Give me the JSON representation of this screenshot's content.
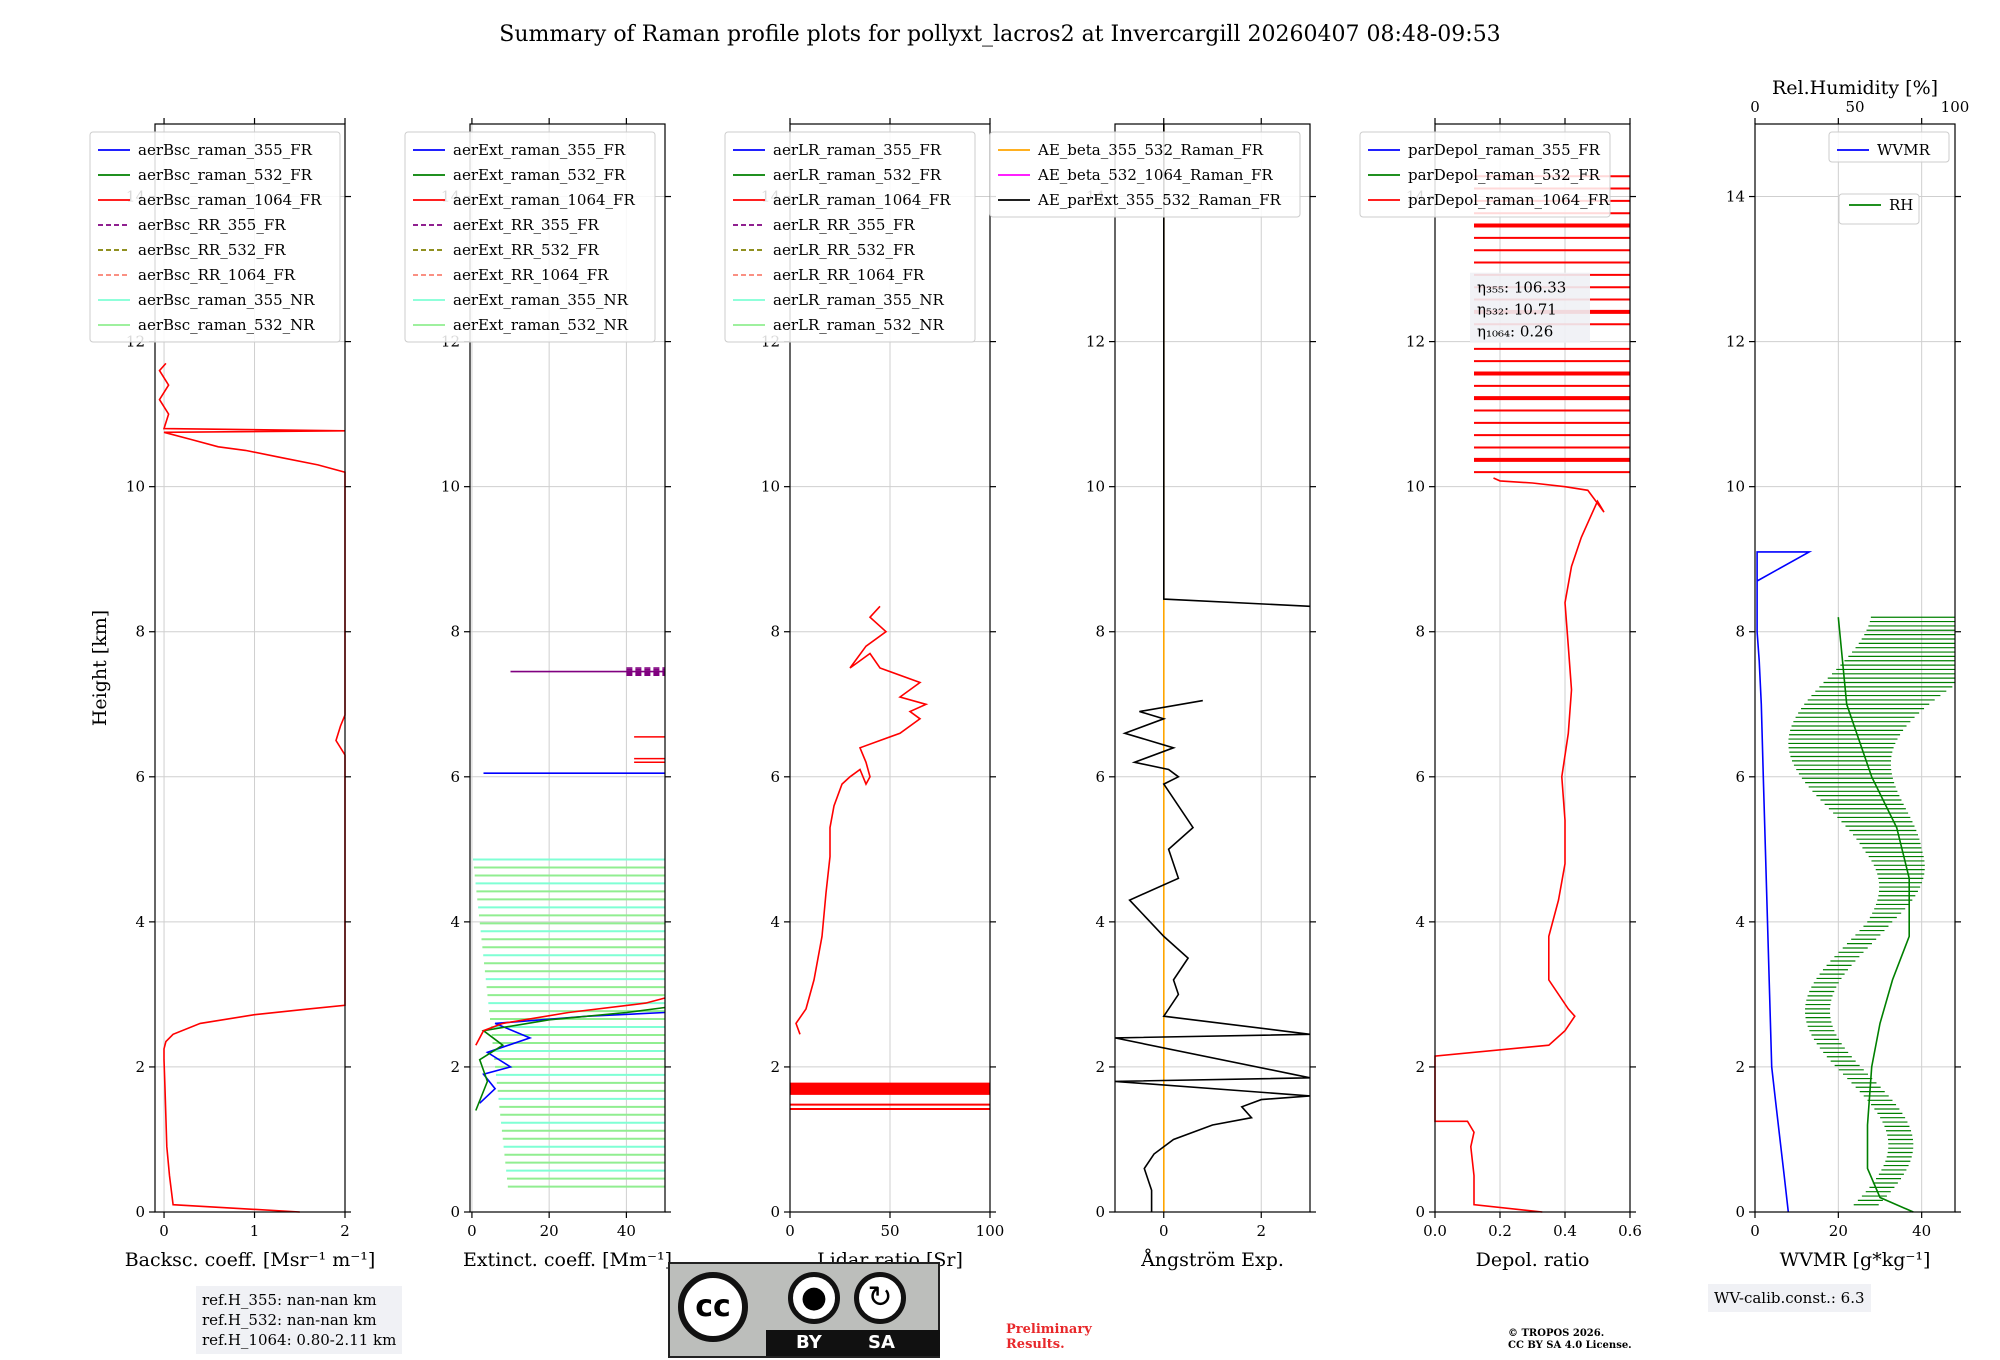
{
  "title": "Summary of Raman profile plots for pollyxt_lacros2 at Invercargill 20260407 08:48-09:53",
  "ylabel": "Height [km]",
  "chart_data": [
    {
      "type": "line",
      "id": "bsc",
      "xlabel": "Backsc. coeff. [Msr⁻¹ m⁻¹]",
      "xlim": [
        -0.1,
        2.0
      ],
      "ylim": [
        0,
        15
      ],
      "xticks": [
        0,
        1,
        2
      ],
      "xtick_labels": [
        "0",
        "1",
        "2"
      ],
      "yticks": [
        0,
        2,
        4,
        6,
        8,
        10,
        12,
        14
      ],
      "grid": true,
      "legend": [
        {
          "label": "aerBsc_raman_355_FR",
          "color": "#0000ff",
          "dash": false
        },
        {
          "label": "aerBsc_raman_532_FR",
          "color": "#008000",
          "dash": false
        },
        {
          "label": "aerBsc_raman_1064_FR",
          "color": "#ff0000",
          "dash": false
        },
        {
          "label": "aerBsc_RR_355_FR",
          "color": "#800080",
          "dash": true
        },
        {
          "label": "aerBsc_RR_532_FR",
          "color": "#808000",
          "dash": true
        },
        {
          "label": "aerBsc_RR_1064_FR",
          "color": "#fa8072",
          "dash": true
        },
        {
          "label": "aerBsc_raman_355_NR",
          "color": "#7fffd4",
          "dash": false
        },
        {
          "label": "aerBsc_raman_532_NR",
          "color": "#90ee90",
          "dash": false
        }
      ],
      "series": [
        {
          "name": "aerBsc_raman_1064_FR",
          "color": "#ff0000",
          "x": [
            1.5,
            0.1,
            0.06,
            0.03,
            0.02,
            0.01,
            0.0,
            0.0,
            0.02,
            0.1,
            0.4,
            1.0,
            1.6,
            2.0,
            2.0,
            1.9,
            1.95,
            2.0,
            2.0,
            1.7,
            1.3,
            0.9,
            0.6,
            0.3,
            0.0,
            2.0,
            0.0,
            0.05,
            -0.05,
            0.05,
            -0.05,
            0.02
          ],
          "y": [
            0.0,
            0.1,
            0.5,
            0.9,
            1.3,
            1.7,
            2.1,
            2.25,
            2.35,
            2.45,
            2.6,
            2.72,
            2.8,
            2.85,
            6.3,
            6.5,
            6.7,
            6.85,
            10.2,
            10.3,
            10.4,
            10.5,
            10.55,
            10.65,
            10.75,
            10.77,
            10.8,
            11.0,
            11.2,
            11.4,
            11.6,
            11.7
          ]
        }
      ]
    },
    {
      "type": "line",
      "id": "ext",
      "xlabel": "Extinct. coeff. [Mm⁻¹]",
      "xlim": [
        -0.5,
        50
      ],
      "ylim": [
        0,
        15
      ],
      "xticks": [
        0,
        20,
        40
      ],
      "xtick_labels": [
        "0",
        "20",
        "40"
      ],
      "yticks": [
        0,
        2,
        4,
        6,
        8,
        10,
        12,
        14
      ],
      "grid": true,
      "legend": [
        {
          "label": "aerExt_raman_355_FR",
          "color": "#0000ff",
          "dash": false
        },
        {
          "label": "aerExt_raman_532_FR",
          "color": "#008000",
          "dash": false
        },
        {
          "label": "aerExt_raman_1064_FR",
          "color": "#ff0000",
          "dash": false
        },
        {
          "label": "aerExt_RR_355_FR",
          "color": "#800080",
          "dash": true
        },
        {
          "label": "aerExt_RR_532_FR",
          "color": "#808000",
          "dash": true
        },
        {
          "label": "aerExt_RR_1064_FR",
          "color": "#fa8072",
          "dash": true
        },
        {
          "label": "aerExt_raman_355_NR",
          "color": "#7fffd4",
          "dash": false
        },
        {
          "label": "aerExt_raman_532_NR",
          "color": "#90ee90",
          "dash": false
        }
      ],
      "series": [
        {
          "name": "aerExt_raman_355_FR",
          "color": "#0000ff",
          "x": [
            2,
            6,
            3,
            10,
            4,
            15,
            6,
            30,
            50
          ],
          "y": [
            1.5,
            1.7,
            1.9,
            2.0,
            2.2,
            2.4,
            2.6,
            2.7,
            2.75
          ]
        },
        {
          "name": "aerExt_raman_532_FR",
          "color": "#008000",
          "x": [
            1,
            4,
            2,
            8,
            3,
            20,
            40,
            50
          ],
          "y": [
            1.4,
            1.8,
            2.1,
            2.3,
            2.5,
            2.65,
            2.75,
            2.82
          ]
        },
        {
          "name": "aerExt_raman_1064_FR",
          "color": "#ff0000",
          "x": [
            1,
            3,
            8,
            25,
            45,
            50
          ],
          "y": [
            2.3,
            2.5,
            2.6,
            2.75,
            2.88,
            2.95
          ]
        },
        {
          "name": "aerExt_RR_355_FR",
          "color": "#800080",
          "x": [
            10,
            50
          ],
          "y": [
            7.45,
            7.45
          ]
        },
        {
          "name": "aerExt_raman_355_FR_upper",
          "color": "#0000ff",
          "x": [
            3,
            50
          ],
          "y": [
            6.05,
            6.05
          ]
        }
      ]
    },
    {
      "type": "line",
      "id": "lr",
      "xlabel": "Lidar ratio [Sr]",
      "xlim": [
        0,
        100
      ],
      "ylim": [
        0,
        15
      ],
      "xticks": [
        0,
        50,
        100
      ],
      "xtick_labels": [
        "0",
        "50",
        "100"
      ],
      "yticks": [
        0,
        2,
        4,
        6,
        8,
        10,
        12,
        14
      ],
      "grid": true,
      "legend": [
        {
          "label": "aerLR_raman_355_FR",
          "color": "#0000ff",
          "dash": false
        },
        {
          "label": "aerLR_raman_532_FR",
          "color": "#008000",
          "dash": false
        },
        {
          "label": "aerLR_raman_1064_FR",
          "color": "#ff0000",
          "dash": false
        },
        {
          "label": "aerLR_RR_355_FR",
          "color": "#800080",
          "dash": true
        },
        {
          "label": "aerLR_RR_532_FR",
          "color": "#808000",
          "dash": true
        },
        {
          "label": "aerLR_RR_1064_FR",
          "color": "#fa8072",
          "dash": true
        },
        {
          "label": "aerLR_raman_355_NR",
          "color": "#7fffd4",
          "dash": false
        },
        {
          "label": "aerLR_raman_532_NR",
          "color": "#90ee90",
          "dash": false
        }
      ],
      "series": [
        {
          "name": "aerLR_raman_1064_FR",
          "color": "#ff0000",
          "x": [
            5,
            3,
            8,
            12,
            16,
            18,
            20,
            20,
            22,
            26,
            30,
            35,
            38,
            40,
            38,
            35,
            45,
            55,
            65,
            60,
            68,
            55,
            65,
            45,
            40,
            30,
            38,
            48,
            40,
            45
          ],
          "y": [
            2.45,
            2.6,
            2.8,
            3.2,
            3.8,
            4.4,
            4.9,
            5.3,
            5.6,
            5.9,
            6.0,
            6.1,
            5.9,
            6.0,
            6.2,
            6.4,
            6.5,
            6.6,
            6.8,
            6.9,
            7.0,
            7.1,
            7.3,
            7.5,
            7.7,
            7.5,
            7.8,
            8.0,
            8.2,
            8.35
          ]
        }
      ]
    },
    {
      "type": "line",
      "id": "ae",
      "xlabel": "Ångström Exp.",
      "xlim": [
        -1,
        3
      ],
      "ylim": [
        0,
        15
      ],
      "xticks": [
        0,
        2
      ],
      "xtick_labels": [
        "0",
        "2"
      ],
      "yticks": [
        0,
        2,
        4,
        6,
        8,
        10,
        12,
        14
      ],
      "grid": true,
      "legend": [
        {
          "label": "AE_beta_355_532_Raman_FR",
          "color": "#ffa500",
          "dash": false
        },
        {
          "label": "AE_beta_532_1064_Raman_FR",
          "color": "#ff00ff",
          "dash": false
        },
        {
          "label": "AE_parExt_355_532_Raman_FR",
          "color": "#000000",
          "dash": false
        }
      ],
      "series": [
        {
          "name": "AE_beta_355_532_Raman_FR",
          "color": "#ffa500",
          "x": [
            0,
            0
          ],
          "y": [
            0,
            15
          ]
        },
        {
          "name": "AE_parExt_355_532_Raman_FR",
          "color": "#000000",
          "x": [
            -0.25,
            -0.25,
            -0.4,
            -0.2,
            0.2,
            1.0,
            1.8,
            1.6,
            2.0,
            3.0,
            -1.0,
            3.0,
            -1.0,
            3.0,
            0.0,
            0.3,
            0.2,
            0.5,
            0.0,
            -0.7,
            0.3,
            0.1,
            0.6,
            0.3,
            0.0,
            0.3,
            0.1,
            -0.6,
            0.2,
            -0.8,
            0.0,
            -0.5,
            0.8
          ],
          "y": [
            0.0,
            0.3,
            0.6,
            0.8,
            1.0,
            1.2,
            1.3,
            1.45,
            1.55,
            1.6,
            1.8,
            1.85,
            2.4,
            2.45,
            2.7,
            3.0,
            3.2,
            3.5,
            3.8,
            4.3,
            4.6,
            5.0,
            5.3,
            5.6,
            5.9,
            6.0,
            6.1,
            6.2,
            6.4,
            6.6,
            6.8,
            6.9,
            7.05
          ]
        },
        {
          "name": "AE_parExt_upper",
          "color": "#000000",
          "x": [
            0,
            0,
            3.0
          ],
          "y": [
            15,
            8.45,
            8.35
          ]
        }
      ]
    },
    {
      "type": "line",
      "id": "depol",
      "xlabel": "Depol. ratio",
      "xlim": [
        0,
        0.6
      ],
      "ylim": [
        0,
        15
      ],
      "xticks": [
        0.0,
        0.2,
        0.4,
        0.6
      ],
      "xtick_labels": [
        "0.0",
        "0.2",
        "0.4",
        "0.6"
      ],
      "yticks": [
        0,
        2,
        4,
        6,
        8,
        10,
        12,
        14
      ],
      "grid": true,
      "legend": [
        {
          "label": "parDepol_raman_355_FR",
          "color": "#0000ff",
          "dash": false
        },
        {
          "label": "parDepol_raman_532_FR",
          "color": "#008000",
          "dash": false
        },
        {
          "label": "parDepol_raman_1064_FR",
          "color": "#ff0000",
          "dash": false
        }
      ],
      "annotation": {
        "eta355": "η₃₅₅: 106.33",
        "eta532": "η₅₃₂: 10.71",
        "eta1064": "η₁₀₆₄: 0.26"
      },
      "series": [
        {
          "name": "parDepol_raman_1064_FR",
          "color": "#ff0000",
          "x": [
            0.33,
            0.12,
            0.12,
            0.11,
            0.12,
            0.1,
            0.0,
            0.0,
            0.35,
            0.4,
            0.43,
            0.41,
            0.35,
            0.35,
            0.38,
            0.4,
            0.4,
            0.39,
            0.41,
            0.42,
            0.41,
            0.4,
            0.42,
            0.45,
            0.48,
            0.5,
            0.52,
            0.47,
            0.4,
            0.3,
            0.2,
            0.18
          ],
          "y": [
            0.0,
            0.1,
            0.5,
            0.9,
            1.1,
            1.25,
            1.25,
            2.15,
            2.3,
            2.5,
            2.7,
            2.8,
            3.2,
            3.8,
            4.3,
            4.8,
            5.4,
            6.0,
            6.6,
            7.2,
            7.8,
            8.4,
            8.9,
            9.3,
            9.6,
            9.8,
            9.65,
            9.95,
            10.0,
            10.05,
            10.08,
            10.12
          ]
        }
      ]
    },
    {
      "type": "line",
      "id": "wv",
      "xlabel": "WVMR [g*kg⁻¹]",
      "xlim": [
        0,
        48
      ],
      "ylim": [
        0,
        15
      ],
      "xticks": [
        0,
        20,
        40
      ],
      "xtick_labels": [
        "0",
        "20",
        "40"
      ],
      "yticks": [
        0,
        2,
        4,
        6,
        8,
        10,
        12,
        14
      ],
      "top_axis": {
        "label": "Rel.Humidity [%]",
        "xlim": [
          0,
          100
        ],
        "xticks": [
          0,
          50,
          100
        ],
        "xtick_labels": [
          "0",
          "50",
          "100"
        ]
      },
      "grid": true,
      "legend": [
        {
          "label": "WVMR",
          "color": "#0000ff",
          "dash": false
        },
        {
          "label": "RH",
          "color": "#008000",
          "dash": false
        }
      ],
      "wv_calib": "WV-calib.const.: 6.3",
      "series": [
        {
          "name": "WVMR",
          "color": "#0000ff",
          "x": [
            8,
            7,
            6,
            5,
            4,
            3.5,
            3,
            2.5,
            2,
            1.5,
            1,
            0.5,
            0.5,
            13,
            0.5
          ],
          "y": [
            0,
            0.5,
            1,
            1.5,
            2,
            3,
            4,
            5,
            6,
            7,
            7.6,
            8.0,
            9.1,
            9.1,
            8.7
          ]
        },
        {
          "name": "RH",
          "color": "#008000",
          "x": [
            38,
            30,
            27,
            27,
            28,
            30,
            33,
            37,
            37,
            34,
            28,
            22,
            20
          ],
          "y": [
            0,
            0.2,
            0.6,
            1.2,
            2.0,
            2.6,
            3.2,
            3.8,
            4.6,
            5.3,
            6.0,
            7.0,
            8.2
          ]
        }
      ]
    }
  ],
  "ref_box": {
    "line1": "ref.H_355: nan-nan km",
    "line2": "ref.H_532: nan-nan km",
    "line3": "ref.H_1064: 0.80-2.11 km"
  },
  "license": {
    "by": "BY",
    "sa": "SA",
    "cc": "cc"
  },
  "preliminary": {
    "line1": "Preliminary",
    "line2": "Results."
  },
  "copyright": {
    "line1": "© TROPOS 2026.",
    "line2": "CC BY SA 4.0 License."
  }
}
